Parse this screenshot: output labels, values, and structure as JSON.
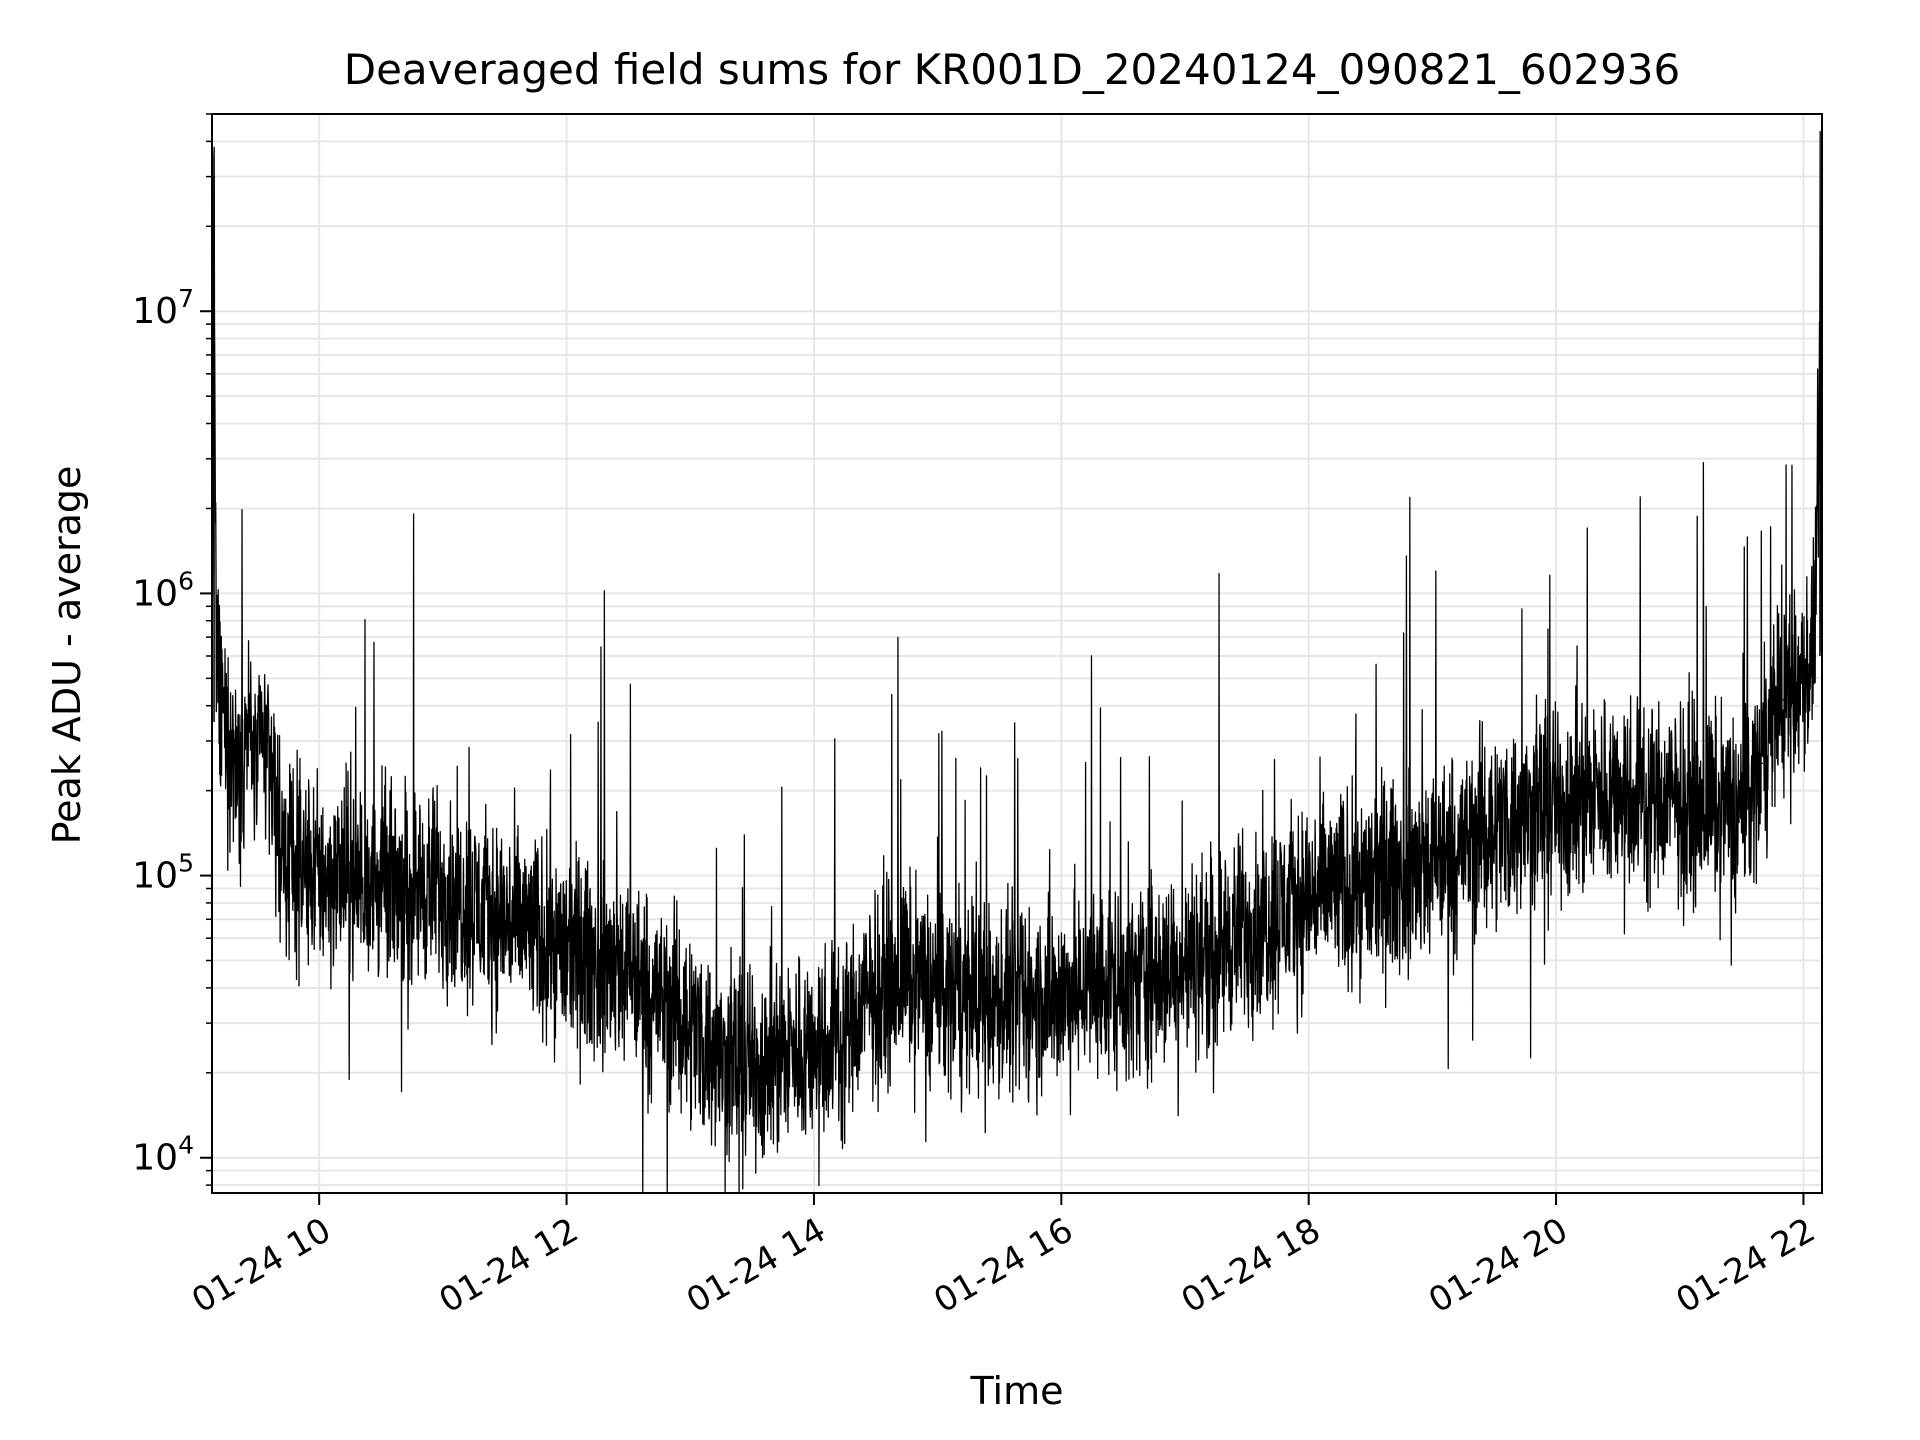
{
  "chart_data": {
    "type": "line",
    "title": "Deaveraged field sums for KR001D_20240124_090821_602936",
    "xlabel": "Time",
    "ylabel": "Peak ADU - average",
    "y_scale": "log",
    "grid": true,
    "grid_minor": true,
    "legend": "none",
    "line_color": "#000000",
    "grid_color": "#e6e6e6",
    "xlim": [
      "2024-01-24 09:08",
      "2024-01-24 22:09"
    ],
    "ylim": [
      7500,
      50000000
    ],
    "x_ticks": [
      {
        "value": "2024-01-24 10:00",
        "label": "01-24 10"
      },
      {
        "value": "2024-01-24 12:00",
        "label": "01-24 12"
      },
      {
        "value": "2024-01-24 14:00",
        "label": "01-24 14"
      },
      {
        "value": "2024-01-24 16:00",
        "label": "01-24 16"
      },
      {
        "value": "2024-01-24 18:00",
        "label": "01-24 18"
      },
      {
        "value": "2024-01-24 20:00",
        "label": "01-24 20"
      },
      {
        "value": "2024-01-24 22:00",
        "label": "01-24 22"
      }
    ],
    "y_ticks": [
      {
        "value": 10000,
        "base": "10",
        "exp": "4"
      },
      {
        "value": 100000,
        "base": "10",
        "exp": "5"
      },
      {
        "value": 1000000,
        "base": "10",
        "exp": "6"
      },
      {
        "value": 10000000,
        "base": "10",
        "exp": "7"
      }
    ],
    "series": [
      {
        "x": [
          "2024-01-24 09:08",
          "2024-01-24 09:09",
          "2024-01-24 09:10",
          "2024-01-24 09:12",
          "2024-01-24 09:15",
          "2024-01-24 09:20",
          "2024-01-24 09:25",
          "2024-01-24 09:30",
          "2024-01-24 09:35",
          "2024-01-24 09:40",
          "2024-01-24 09:45",
          "2024-01-24 10:00",
          "2024-01-24 10:30",
          "2024-01-24 11:00",
          "2024-01-24 11:30",
          "2024-01-24 12:00",
          "2024-01-24 12:30",
          "2024-01-24 13:00",
          "2024-01-24 13:15",
          "2024-01-24 13:30",
          "2024-01-24 13:45",
          "2024-01-24 14:00",
          "2024-01-24 14:15",
          "2024-01-24 14:30",
          "2024-01-24 14:45",
          "2024-01-24 15:00",
          "2024-01-24 15:30",
          "2024-01-24 16:00",
          "2024-01-24 16:30",
          "2024-01-24 17:00",
          "2024-01-24 17:30",
          "2024-01-24 18:00",
          "2024-01-24 18:30",
          "2024-01-24 19:00",
          "2024-01-24 19:30",
          "2024-01-24 20:00",
          "2024-01-24 20:30",
          "2024-01-24 21:00",
          "2024-01-24 21:30",
          "2024-01-24 21:40",
          "2024-01-24 21:45",
          "2024-01-24 21:50",
          "2024-01-24 22:00",
          "2024-01-24 22:05",
          "2024-01-24 22:08",
          "2024-01-24 22:09"
        ],
        "y": [
          350000,
          30000000,
          600000,
          400000,
          300000,
          250000,
          350000,
          250000,
          300000,
          150000,
          110000,
          100000,
          95000,
          90000,
          70000,
          55000,
          45000,
          30000,
          22000,
          21000,
          23000,
          25000,
          28000,
          40000,
          45000,
          40000,
          35000,
          38000,
          42000,
          48000,
          65000,
          85000,
          95000,
          110000,
          150000,
          180000,
          200000,
          185000,
          175000,
          250000,
          380000,
          420000,
          500000,
          600000,
          5500000,
          650000
        ]
      }
    ]
  }
}
